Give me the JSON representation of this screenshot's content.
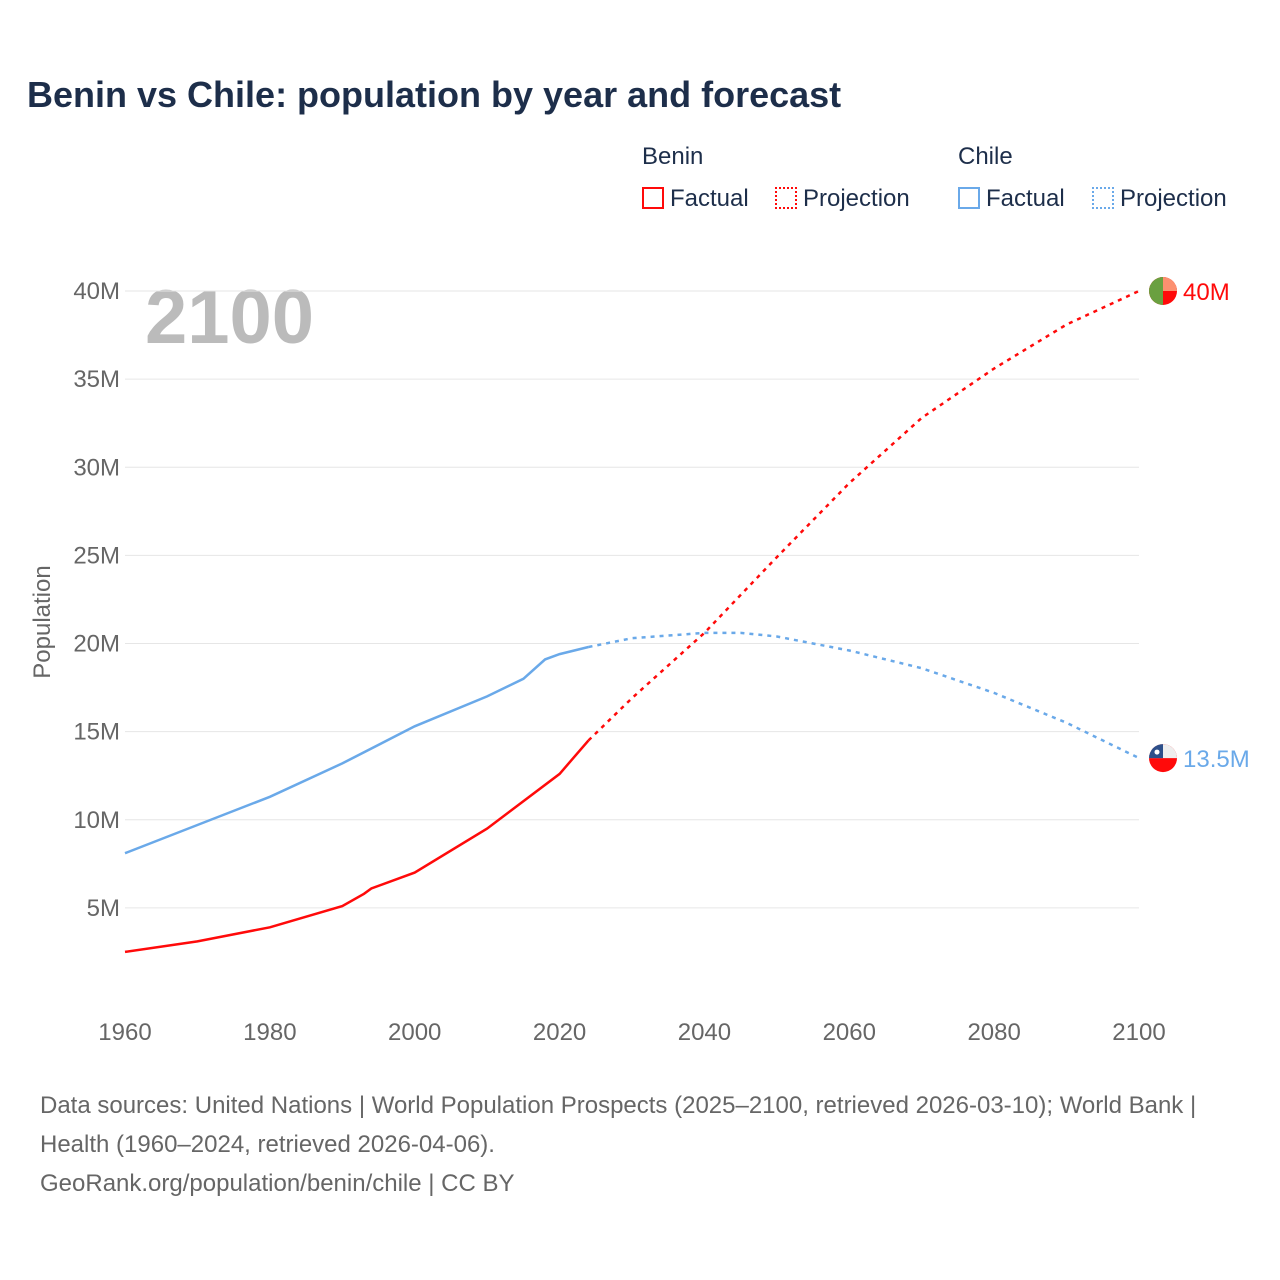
{
  "title": "Benin vs Chile: population by year and forecast",
  "year_badge": "2100",
  "legend": {
    "benin": "Benin",
    "chile": "Chile",
    "factual": "Factual",
    "projection": "Projection"
  },
  "colors": {
    "benin": "#ff0a0a",
    "chile": "#6aa9e9"
  },
  "sources": "Data sources: United Nations | World Population Prospects (2025–2100, retrieved 2026-03-10); World Bank | Health (1960–2024, retrieved 2026-04-06).",
  "credit": "GeoRank.org/population/benin/chile | CC BY",
  "chart_data": {
    "type": "line",
    "ylabel": "Population",
    "xlim": [
      1960,
      2100
    ],
    "ylim": [
      0,
      40000000
    ],
    "xticks": [
      "1960",
      "1980",
      "2000",
      "2020",
      "2040",
      "2060",
      "2080",
      "2100"
    ],
    "yticks": [
      {
        "v": 5000000,
        "label": "5M"
      },
      {
        "v": 10000000,
        "label": "10M"
      },
      {
        "v": 15000000,
        "label": "15M"
      },
      {
        "v": 20000000,
        "label": "20M"
      },
      {
        "v": 25000000,
        "label": "25M"
      },
      {
        "v": 30000000,
        "label": "30M"
      },
      {
        "v": 35000000,
        "label": "35M"
      },
      {
        "v": 40000000,
        "label": "40M"
      }
    ],
    "series": [
      {
        "name": "Benin",
        "end_label": "40M",
        "factual": [
          [
            1960,
            2.5
          ],
          [
            1970,
            3.1
          ],
          [
            1980,
            3.9
          ],
          [
            1990,
            5.1
          ],
          [
            1993,
            5.8
          ],
          [
            1994,
            6.1
          ],
          [
            2000,
            7.0
          ],
          [
            2010,
            9.5
          ],
          [
            2020,
            12.6
          ],
          [
            2024,
            14.5
          ]
        ],
        "projection": [
          [
            2024,
            14.5
          ],
          [
            2030,
            16.9
          ],
          [
            2040,
            20.6
          ],
          [
            2050,
            24.9
          ],
          [
            2060,
            29.1
          ],
          [
            2070,
            32.8
          ],
          [
            2080,
            35.6
          ],
          [
            2090,
            38.1
          ],
          [
            2100,
            40.0
          ]
        ]
      },
      {
        "name": "Chile",
        "end_label": "13.5M",
        "factual": [
          [
            1960,
            8.1
          ],
          [
            1970,
            9.7
          ],
          [
            1980,
            11.3
          ],
          [
            1990,
            13.2
          ],
          [
            2000,
            15.3
          ],
          [
            2010,
            17.0
          ],
          [
            2015,
            18.0
          ],
          [
            2018,
            19.1
          ],
          [
            2020,
            19.4
          ],
          [
            2024,
            19.8
          ]
        ],
        "projection": [
          [
            2024,
            19.8
          ],
          [
            2030,
            20.3
          ],
          [
            2040,
            20.6
          ],
          [
            2045,
            20.6
          ],
          [
            2050,
            20.4
          ],
          [
            2060,
            19.6
          ],
          [
            2070,
            18.6
          ],
          [
            2080,
            17.2
          ],
          [
            2090,
            15.5
          ],
          [
            2100,
            13.5
          ]
        ]
      }
    ],
    "units": "millions"
  }
}
